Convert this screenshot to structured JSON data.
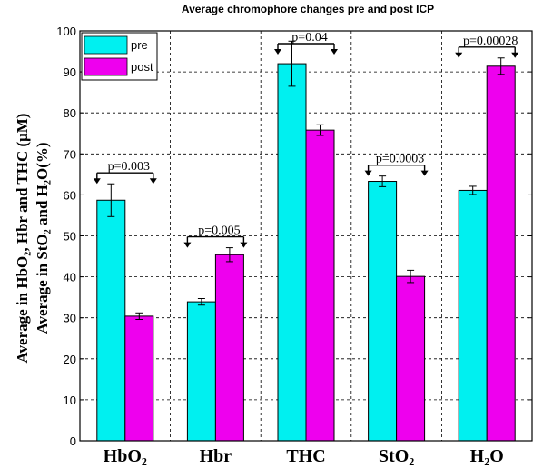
{
  "chart_data": {
    "type": "bar",
    "title": "Average chromophore changes pre and post ICP",
    "ylabel_line1": "Average in HbO₂, Hbr and THC (μM)",
    "ylabel_line2": "Average in StO₂ and H₂O(%)",
    "xlabel": "",
    "ylim": [
      0,
      100
    ],
    "yticks": [
      0,
      10,
      20,
      30,
      40,
      50,
      60,
      70,
      80,
      90,
      100
    ],
    "categories": [
      "HbO₂",
      "Hbr",
      "THC",
      "StO₂",
      "H₂O"
    ],
    "series": [
      {
        "name": "pre",
        "color": "#00f0f0",
        "values": [
          58.7,
          33.9,
          92.0,
          63.3,
          61.1
        ],
        "errors": [
          4.0,
          0.8,
          5.5,
          1.3,
          1.0
        ]
      },
      {
        "name": "post",
        "color": "#ee00ee",
        "values": [
          30.4,
          45.4,
          75.8,
          40.1,
          91.4
        ],
        "errors": [
          0.8,
          1.7,
          1.3,
          1.5,
          2.0
        ]
      }
    ],
    "p_values": [
      "p=0.003",
      "p=0.005",
      "p=0.04",
      "p=0.0003",
      "p=0.00028"
    ],
    "legend": {
      "placement": "top-left",
      "entries": [
        "pre",
        "post"
      ]
    },
    "grid": true
  }
}
